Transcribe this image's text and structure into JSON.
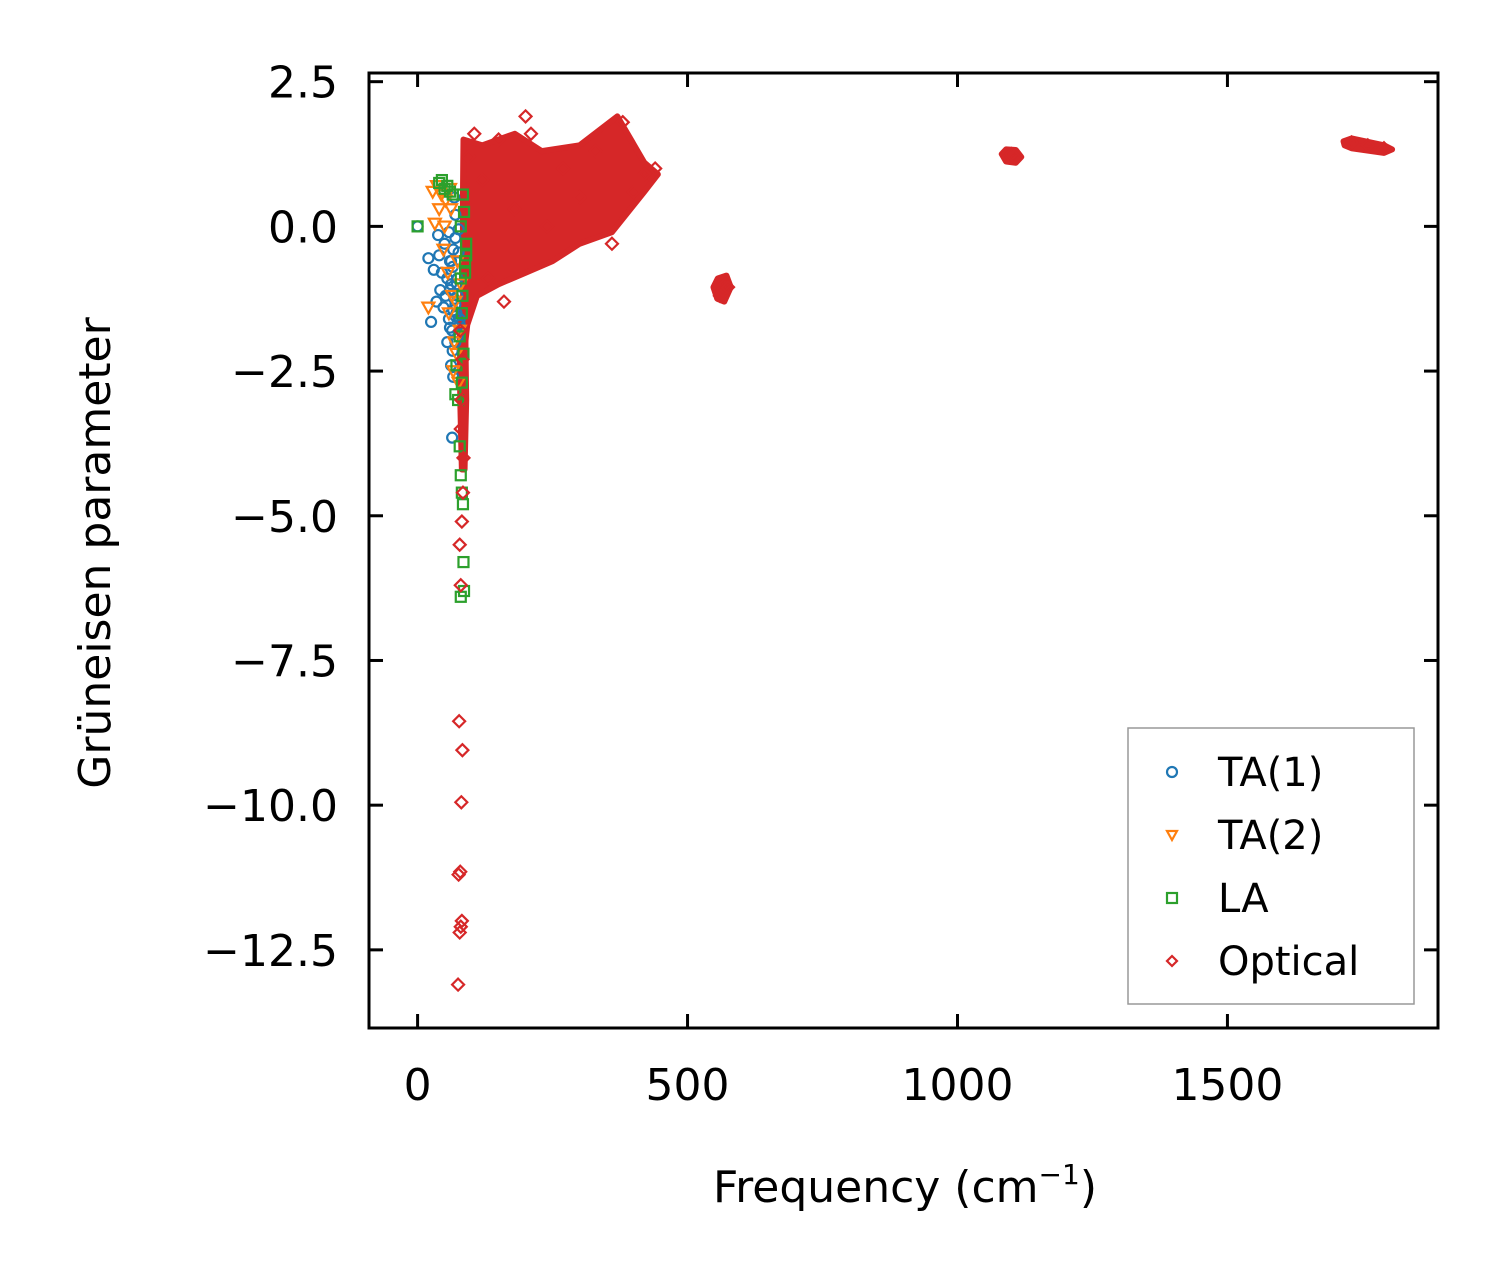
{
  "chart_data": {
    "type": "scatter",
    "title": "",
    "xlabel": "Frequency (cm",
    "xlabel_sup": "−1",
    "xlabel_suffix": ")",
    "ylabel": "Grüneisen parameter",
    "xlim": [
      -90,
      1890
    ],
    "ylim": [
      -13.85,
      2.65
    ],
    "xticks": [
      0,
      500,
      1000,
      1500
    ],
    "xtick_labels": [
      "0",
      "500",
      "1000",
      "1500"
    ],
    "yticks": [
      2.5,
      0.0,
      -2.5,
      -5.0,
      -7.5,
      -10.0,
      -12.5
    ],
    "ytick_labels": [
      "2.5",
      "0.0",
      "−2.5",
      "−5.0",
      "−7.5",
      "−10.0",
      "−12.5"
    ],
    "grid": false,
    "legend_position": "lower-right",
    "series": [
      {
        "name": "TA(1)",
        "marker": "circle",
        "color": "#1f77b4",
        "x": [
          0,
          20,
          25,
          30,
          35,
          38,
          40,
          42,
          45,
          48,
          50,
          52,
          55,
          58,
          60,
          62,
          64,
          66,
          68,
          70,
          72,
          74,
          76,
          78,
          55,
          60,
          65,
          70,
          75,
          62,
          66,
          70,
          73,
          76,
          60,
          65,
          70,
          58,
          62,
          66,
          70,
          74,
          78,
          64,
          68
        ],
        "y": [
          0.0,
          -0.55,
          -1.65,
          -0.75,
          -1.3,
          -0.15,
          -0.5,
          -1.1,
          -0.8,
          -1.4,
          -0.3,
          -1.2,
          -0.9,
          -1.6,
          -0.6,
          -1.0,
          -1.8,
          -0.4,
          -1.25,
          -0.2,
          -1.5,
          -0.9,
          -0.05,
          -1.7,
          -2.0,
          -1.1,
          -0.7,
          -1.35,
          -1.9,
          -2.4,
          -2.6,
          -1.55,
          -1.0,
          -0.45,
          -1.75,
          -2.15,
          0.2,
          -0.1,
          -0.6,
          -1.45,
          -2.0,
          -1.2,
          -1.6,
          -3.65,
          0.5
        ],
        "size": 5
      },
      {
        "name": "TA(2)",
        "marker": "triangle_down",
        "color": "#ff7f0e",
        "x": [
          20,
          28,
          32,
          36,
          40,
          44,
          48,
          52,
          56,
          60,
          64,
          68,
          72,
          76,
          80,
          50,
          58,
          66,
          74,
          78,
          62,
          70
        ],
        "y": [
          -1.4,
          0.6,
          0.05,
          0.7,
          0.3,
          0.55,
          -0.4,
          0.45,
          -0.8,
          0.65,
          -1.2,
          -2.0,
          -2.2,
          -2.7,
          -1.0,
          0.0,
          -1.5,
          -2.5,
          -0.6,
          -1.8,
          0.3,
          -1.3
        ],
        "size": 6
      },
      {
        "name": "LA",
        "marker": "square",
        "color": "#2ca02c",
        "x": [
          0,
          40,
          45,
          50,
          55,
          60,
          65,
          70,
          72,
          75,
          78,
          80,
          82,
          84,
          85,
          86,
          88,
          90,
          80,
          82,
          84,
          78,
          80,
          83,
          86,
          88,
          90,
          85,
          82,
          80
        ],
        "y": [
          0.0,
          0.75,
          0.8,
          0.65,
          0.7,
          0.6,
          0.55,
          -2.9,
          -2.4,
          -3.0,
          -3.8,
          -4.3,
          -4.6,
          -4.8,
          -5.8,
          -6.3,
          -0.6,
          -0.5,
          -6.4,
          -2.7,
          0.55,
          -1.9,
          0.0,
          -1.2,
          0.25,
          -0.8,
          -0.3,
          -2.2,
          -1.5,
          -0.9
        ],
        "size": 5
      },
      {
        "name": "Optical",
        "marker": "diamond",
        "color": "#d62728",
        "x": [
          75,
          78,
          80,
          82,
          76,
          79,
          81,
          83,
          77,
          80,
          78,
          82,
          84,
          85,
          80,
          81,
          83,
          79,
          200,
          105,
          130,
          160,
          430,
          560,
          565,
          570,
          575,
          1095,
          1100,
          1105,
          1730,
          1760,
          1790,
          95,
          120,
          150,
          180,
          210,
          240,
          270,
          300,
          330,
          360,
          380,
          400,
          420,
          440
        ],
        "y": [
          -13.1,
          -12.2,
          -12.1,
          -12.0,
          -11.2,
          -11.15,
          -9.95,
          -9.05,
          -8.55,
          -6.2,
          -5.5,
          -5.1,
          -4.6,
          -4.0,
          -3.5,
          -3.0,
          -2.3,
          -1.8,
          1.9,
          1.6,
          -0.9,
          -1.3,
          0.9,
          -1.2,
          -1.1,
          -1.0,
          -1.05,
          1.2,
          1.25,
          1.2,
          1.45,
          1.4,
          1.35,
          1.2,
          0.8,
          1.5,
          0.3,
          1.6,
          0.0,
          1.0,
          0.5,
          1.3,
          -0.3,
          1.8,
          0.6,
          0.9,
          1.0
        ],
        "size": 6
      }
    ]
  }
}
